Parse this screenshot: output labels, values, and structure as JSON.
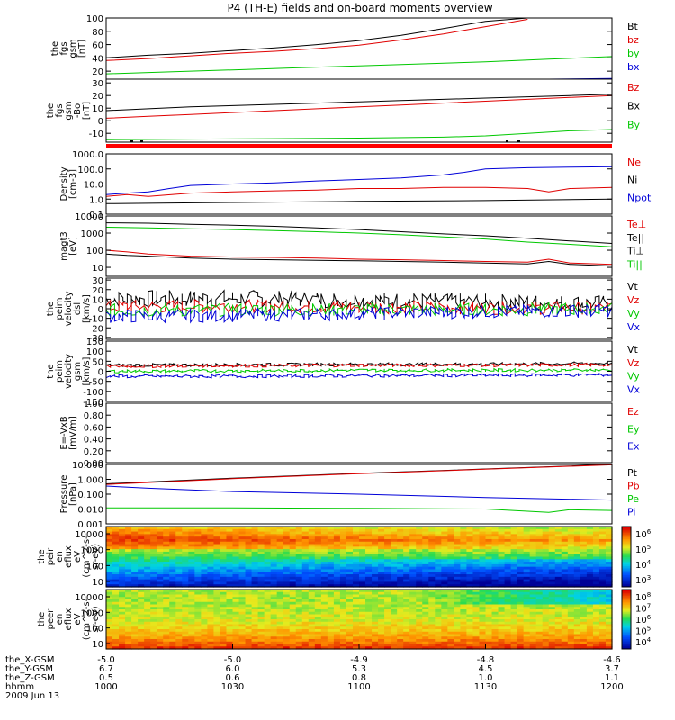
{
  "title": "P4 (TH-E) fields and on-board moments overview",
  "colors": {
    "black": "#000000",
    "red": "#e00000",
    "green": "#00c800",
    "blue": "#0000d8",
    "line_red": "#ff0000"
  },
  "x_axis": {
    "tick_labels": [
      "1000",
      "1030",
      "1100",
      "1130",
      "1200"
    ],
    "rows": [
      {
        "label": "the_X-GSM",
        "values": [
          "-5.0",
          "-5.0",
          "-4.9",
          "-4.8",
          "-4.6"
        ]
      },
      {
        "label": "the_Y-GSM",
        "values": [
          "6.7",
          "6.0",
          "5.3",
          "4.5",
          "3.7"
        ]
      },
      {
        "label": "the_Z-GSM",
        "values": [
          "0.5",
          "0.6",
          "0.8",
          "1.0",
          "1.1"
        ]
      },
      {
        "label": "hhmm",
        "values": [
          "1000",
          "1030",
          "1100",
          "1130",
          "1200"
        ]
      }
    ],
    "date": "2009 Jun 13"
  },
  "chart_data": [
    {
      "type": "line",
      "ylabel": [
        "the",
        "fgs",
        "gsm",
        "[nT]"
      ],
      "yticks": [
        "20",
        "40",
        "60",
        "80",
        "100"
      ],
      "ylim": [
        8,
        100
      ],
      "legend": [
        {
          "name": "Bt",
          "color": "#000000"
        },
        {
          "name": "bz",
          "color": "#e00000"
        },
        {
          "name": "by",
          "color": "#00c800"
        },
        {
          "name": "bx",
          "color": "#0000d8"
        }
      ],
      "series": [
        {
          "name": "Bt",
          "x": [
            1000,
            1010,
            1020,
            1030,
            1040,
            1050,
            1100,
            1110,
            1120,
            1130,
            1140,
            1145
          ],
          "y": [
            40,
            44,
            47,
            51,
            55,
            60,
            66,
            74,
            84,
            95,
            104,
            110
          ]
        },
        {
          "name": "bz",
          "x": [
            1000,
            1010,
            1020,
            1030,
            1040,
            1050,
            1100,
            1110,
            1120,
            1130,
            1140
          ],
          "y": [
            36,
            39,
            43,
            47,
            50,
            54,
            59,
            67,
            76,
            87,
            98
          ]
        },
        {
          "name": "by",
          "x": [
            1000,
            1015,
            1030,
            1045,
            1100,
            1115,
            1130,
            1145,
            1200
          ],
          "y": [
            16,
            19,
            22,
            25,
            28,
            31,
            34,
            38,
            42
          ]
        },
        {
          "name": "bx",
          "x": [
            1000,
            1030,
            1100,
            1130,
            1145,
            1200
          ],
          "y": [
            2,
            3,
            4,
            5,
            6,
            9
          ]
        }
      ]
    },
    {
      "type": "line",
      "ylabel": [
        "the",
        "fgs",
        "gsm",
        "-Bo",
        "[nT]"
      ],
      "yticks": [
        "-10",
        "0",
        "10",
        "20",
        "30"
      ],
      "ylim": [
        -17,
        33
      ],
      "legend": [
        {
          "name": "Bz",
          "color": "#e00000"
        },
        {
          "name": "Bx",
          "color": "#000000"
        },
        {
          "name": "By",
          "color": "#00c800"
        }
      ],
      "series": [
        {
          "name": "Bx",
          "x": [
            1000,
            1010,
            1020,
            1030,
            1040,
            1050,
            1100,
            1110,
            1120,
            1130,
            1140,
            1150,
            1200
          ],
          "y": [
            8,
            9.5,
            11,
            12,
            13,
            14,
            15,
            16,
            17,
            18,
            19,
            20,
            21
          ]
        },
        {
          "name": "Bz",
          "x": [
            1000,
            1010,
            1020,
            1030,
            1040,
            1050,
            1100,
            1110,
            1120,
            1130,
            1140,
            1150,
            1200
          ],
          "y": [
            2,
            3.5,
            5,
            6.5,
            8,
            9.5,
            11,
            12.5,
            14,
            15.5,
            17,
            18.5,
            20
          ]
        },
        {
          "name": "By",
          "x": [
            1000,
            1020,
            1040,
            1100,
            1120,
            1130,
            1140,
            1150,
            1200
          ],
          "y": [
            -15,
            -14.6,
            -14.2,
            -13.8,
            -13,
            -12,
            -10,
            -8,
            -7
          ]
        }
      ]
    },
    {
      "type": "line",
      "ylabel": [
        "Density",
        "[cm-3]"
      ],
      "yscale": "log",
      "yticks": [
        "0.1",
        "1.0",
        "10.0",
        "100.0",
        "1000.0"
      ],
      "ylim": [
        0.1,
        1000
      ],
      "legend": [
        {
          "name": "Ne",
          "color": "#e00000"
        },
        {
          "name": "Ni",
          "color": "#000000"
        },
        {
          "name": "Npot",
          "color": "#0000d8"
        }
      ],
      "series": [
        {
          "name": "Npot",
          "x": [
            1000,
            1005,
            1010,
            1015,
            1020,
            1030,
            1040,
            1050,
            1100,
            1110,
            1120,
            1125,
            1130,
            1140,
            1150,
            1200
          ],
          "y": [
            2,
            2.5,
            3,
            5,
            8,
            10,
            12,
            16,
            20,
            25,
            40,
            60,
            100,
            120,
            130,
            140
          ]
        },
        {
          "name": "Ne",
          "x": [
            1000,
            1005,
            1010,
            1020,
            1030,
            1040,
            1050,
            1100,
            1110,
            1120,
            1130,
            1140,
            1145,
            1150,
            1200
          ],
          "y": [
            1.5,
            2,
            1.5,
            2.5,
            3,
            3.5,
            4,
            5,
            5,
            6,
            6,
            5,
            3,
            5,
            6
          ]
        },
        {
          "name": "Ni",
          "x": [
            1000,
            1030,
            1100,
            1130,
            1200
          ],
          "y": [
            0.5,
            0.6,
            0.7,
            0.8,
            1.0
          ]
        }
      ]
    },
    {
      "type": "line",
      "ylabel": [
        "magt3",
        "[eV]"
      ],
      "yscale": "log",
      "yticks": [
        "10",
        "100",
        "1000",
        "10000"
      ],
      "ylim": [
        3,
        10000
      ],
      "legend": [
        {
          "name": "Te⊥",
          "color": "#e00000"
        },
        {
          "name": "Te||",
          "color": "#000000"
        },
        {
          "name": "Ti⊥",
          "color": "#000000"
        },
        {
          "name": "Ti||",
          "color": "#00c800"
        }
      ],
      "series": [
        {
          "name": "Ti⊥",
          "x": [
            1000,
            1010,
            1020,
            1030,
            1040,
            1050,
            1100,
            1110,
            1120,
            1130,
            1140,
            1150,
            1200
          ],
          "y": [
            4000,
            3800,
            3300,
            2900,
            2500,
            2000,
            1600,
            1200,
            900,
            700,
            500,
            350,
            250
          ]
        },
        {
          "name": "Ti||",
          "x": [
            1000,
            1010,
            1020,
            1030,
            1040,
            1050,
            1100,
            1110,
            1120,
            1130,
            1140,
            1150,
            1200
          ],
          "y": [
            2200,
            2000,
            1800,
            1600,
            1400,
            1200,
            1000,
            800,
            600,
            450,
            300,
            220,
            160
          ]
        },
        {
          "name": "Te⊥",
          "x": [
            1000,
            1005,
            1010,
            1020,
            1030,
            1040,
            1050,
            1100,
            1110,
            1120,
            1130,
            1140,
            1145,
            1150,
            1200
          ],
          "y": [
            100,
            80,
            60,
            45,
            40,
            38,
            35,
            30,
            28,
            25,
            22,
            20,
            30,
            18,
            15
          ]
        },
        {
          "name": "Te||",
          "x": [
            1000,
            1005,
            1010,
            1020,
            1030,
            1040,
            1050,
            1100,
            1110,
            1120,
            1130,
            1140,
            1145,
            1150,
            1200
          ],
          "y": [
            60,
            50,
            45,
            35,
            30,
            28,
            26,
            24,
            22,
            20,
            18,
            16,
            22,
            15,
            12
          ]
        }
      ]
    },
    {
      "type": "line",
      "ylabel": [
        "the",
        "peim",
        "velocity",
        "dsl",
        "[km/s]"
      ],
      "yticks": [
        "-30",
        "-20",
        "-10",
        "0",
        "10",
        "20",
        "30"
      ],
      "ylim": [
        -32,
        32
      ],
      "legend": [
        {
          "name": "Vt",
          "color": "#000000"
        },
        {
          "name": "Vz",
          "color": "#e00000"
        },
        {
          "name": "Vy",
          "color": "#00c800"
        },
        {
          "name": "Vx",
          "color": "#0000d8"
        }
      ],
      "series": [
        {
          "name": "Vt",
          "x": [
            1000,
            1030,
            1100,
            1130,
            1200
          ],
          "y": [
            10,
            11,
            9,
            7,
            5
          ]
        },
        {
          "name": "Vz",
          "x": [
            1000,
            1030,
            1100,
            1130,
            1200
          ],
          "y": [
            2,
            3,
            2,
            1,
            1
          ]
        },
        {
          "name": "Vy",
          "x": [
            1000,
            1030,
            1100,
            1130,
            1200
          ],
          "y": [
            -2,
            -1,
            -1,
            -1,
            0
          ]
        },
        {
          "name": "Vx",
          "x": [
            1000,
            1030,
            1100,
            1130,
            1200
          ],
          "y": [
            -8,
            -7,
            -5,
            -3,
            -2
          ]
        }
      ]
    },
    {
      "type": "line",
      "ylabel": [
        "the",
        "peim",
        "velocity",
        "gsm",
        "[km/s]"
      ],
      "yticks": [
        "-150",
        "-100",
        "-50",
        "0",
        "50",
        "100",
        "150"
      ],
      "ylim": [
        -150,
        150
      ],
      "legend": [
        {
          "name": "Vt",
          "color": "#000000"
        },
        {
          "name": "Vz",
          "color": "#e00000"
        },
        {
          "name": "Vy",
          "color": "#00c800"
        },
        {
          "name": "Vx",
          "color": "#0000d8"
        }
      ],
      "series": [
        {
          "name": "Vt",
          "x": [
            1000,
            1030,
            1100,
            1130,
            1200
          ],
          "y": [
            30,
            32,
            35,
            35,
            40
          ]
        },
        {
          "name": "Vz",
          "x": [
            1000,
            1030,
            1100,
            1130,
            1200
          ],
          "y": [
            25,
            28,
            30,
            30,
            32
          ]
        },
        {
          "name": "Vy",
          "x": [
            1000,
            1030,
            1100,
            1130,
            1200
          ],
          "y": [
            0,
            2,
            5,
            5,
            6
          ]
        },
        {
          "name": "Vx",
          "x": [
            1000,
            1030,
            1100,
            1130,
            1200
          ],
          "y": [
            -25,
            -25,
            -22,
            -20,
            -18
          ]
        }
      ]
    },
    {
      "type": "line",
      "ylabel": [
        "E=-VxB",
        "[mV/m]"
      ],
      "yticks": [
        "0.00",
        "0.20",
        "0.40",
        "0.60",
        "0.80",
        "1.00"
      ],
      "ylim": [
        0,
        1
      ],
      "legend": [
        {
          "name": "Ez",
          "color": "#e00000"
        },
        {
          "name": "Ey",
          "color": "#00c800"
        },
        {
          "name": "Ex",
          "color": "#0000d8"
        }
      ],
      "series": []
    },
    {
      "type": "line",
      "ylabel": [
        "Pressure",
        "[nPa]"
      ],
      "yscale": "log",
      "yticks": [
        "0.001",
        "0.010",
        "0.100",
        "1.000",
        "10.000"
      ],
      "ylim": [
        0.001,
        10
      ],
      "legend": [
        {
          "name": "Pt",
          "color": "#000000"
        },
        {
          "name": "Pb",
          "color": "#e00000"
        },
        {
          "name": "Pe",
          "color": "#00c800"
        },
        {
          "name": "Pi",
          "color": "#0000d8"
        }
      ],
      "series": [
        {
          "name": "Pt",
          "x": [
            1000,
            1030,
            1100,
            1130,
            1200
          ],
          "y": [
            0.5,
            1.2,
            2.5,
            5,
            10
          ]
        },
        {
          "name": "Pb",
          "x": [
            1000,
            1030,
            1100,
            1130,
            1200
          ],
          "y": [
            0.45,
            1.1,
            2.4,
            4.8,
            9.5
          ]
        },
        {
          "name": "Pi",
          "x": [
            1000,
            1010,
            1030,
            1100,
            1130,
            1200
          ],
          "y": [
            0.35,
            0.25,
            0.15,
            0.1,
            0.06,
            0.04
          ]
        },
        {
          "name": "Pe",
          "x": [
            1000,
            1030,
            1100,
            1130,
            1145,
            1150,
            1200
          ],
          "y": [
            0.012,
            0.012,
            0.011,
            0.01,
            0.006,
            0.009,
            0.008
          ]
        }
      ]
    },
    {
      "type": "heatmap",
      "ylabel": [
        "the",
        "peir",
        "en",
        "eflux",
        "eV",
        "(cm^2-s-",
        "sr-eV)"
      ],
      "yticks": [
        "10",
        "100",
        "1000",
        "10000"
      ],
      "colorbar_ticks": [
        "10^3",
        "10^4",
        "10^5",
        "10^6"
      ]
    },
    {
      "type": "heatmap",
      "ylabel": [
        "the",
        "peer",
        "en",
        "eflux",
        "eV",
        "(cm^2-s-",
        "sr-eV)"
      ],
      "yticks": [
        "10",
        "100",
        "1000",
        "10000"
      ],
      "colorbar_ticks": [
        "10^4",
        "10^5",
        "10^6",
        "10^7",
        "10^8"
      ]
    }
  ]
}
